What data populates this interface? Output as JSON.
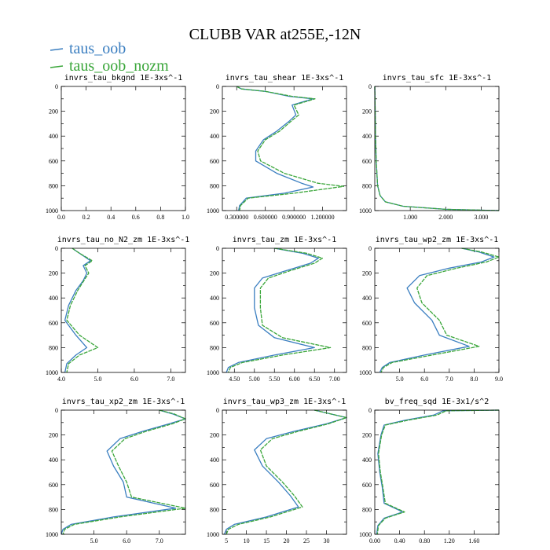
{
  "figure": {
    "title": "CLUBB VAR at255E,-12N",
    "legend": [
      {
        "name": "taus_oob",
        "color": "#3a7ec0"
      },
      {
        "name": "taus_oob_nozm",
        "color": "#3aa63a"
      }
    ]
  },
  "chart_data": [
    {
      "type": "line",
      "title": "invrs_tau_bkgnd  1E-3xs^-1",
      "xlim": [
        0,
        1
      ],
      "ylim": [
        1000,
        0
      ],
      "xticks": [
        "0.0",
        "0.2",
        "0.4",
        "0.6",
        "0.8",
        "1.0"
      ],
      "xtick_values": [
        0,
        0.2,
        0.4,
        0.6,
        0.8,
        1.0
      ],
      "yticks": [
        "0",
        "200",
        "400",
        "600",
        "800",
        "1000"
      ],
      "ytick_values": [
        0,
        200,
        400,
        600,
        800,
        1000
      ],
      "series": []
    },
    {
      "type": "line",
      "title": "invrs_tau_shear  1E-3xs^-1",
      "xlim": [
        0.15,
        1.45
      ],
      "ylim": [
        1000,
        0
      ],
      "xticks": [
        "0.300000",
        "0.600000",
        "0.900000",
        "1.200000"
      ],
      "xtick_values": [
        0.3,
        0.6,
        0.9,
        1.2
      ],
      "yticks": [
        "0",
        "200",
        "400",
        "600",
        "800",
        "1000"
      ],
      "ytick_values": [
        0,
        200,
        400,
        600,
        800,
        1000
      ],
      "series": [
        {
          "x": [
            0.3,
            0.35,
            0.6,
            0.85,
            1.1,
            0.88,
            0.92,
            0.85,
            0.72,
            0.58,
            0.5,
            0.5,
            0.72,
            0.98,
            1.1,
            0.8,
            0.4,
            0.33,
            0.32
          ],
          "y": [
            0,
            20,
            40,
            80,
            100,
            150,
            230,
            280,
            360,
            430,
            520,
            600,
            700,
            780,
            810,
            860,
            900,
            960,
            1000
          ]
        },
        {
          "x": [
            0.3,
            0.35,
            0.6,
            0.88,
            1.12,
            0.9,
            0.95,
            0.87,
            0.75,
            0.6,
            0.52,
            0.55,
            0.8,
            1.15,
            1.42,
            0.9,
            0.42,
            0.34,
            0.33
          ],
          "y": [
            0,
            20,
            40,
            80,
            100,
            150,
            230,
            280,
            360,
            430,
            520,
            600,
            700,
            780,
            805,
            860,
            900,
            960,
            1000
          ]
        }
      ]
    },
    {
      "type": "line",
      "title": "invrs_tau_sfc  1E-3xs^-1",
      "xlim": [
        0,
        3.5
      ],
      "ylim": [
        1000,
        0
      ],
      "xticks": [
        "1.000",
        "2.000",
        "3.000"
      ],
      "xtick_values": [
        1,
        2,
        3
      ],
      "yticks": [
        "0",
        "200",
        "400",
        "600",
        "800",
        "1000"
      ],
      "ytick_values": [
        0,
        200,
        400,
        600,
        800,
        1000
      ],
      "series": [
        {
          "x": [
            0.0,
            0.01,
            0.02,
            0.04,
            0.08,
            0.15,
            0.3,
            0.8,
            2.0,
            3.5
          ],
          "y": [
            0,
            200,
            400,
            600,
            800,
            880,
            930,
            965,
            990,
            1000
          ]
        },
        {
          "x": [
            0.0,
            0.01,
            0.02,
            0.04,
            0.08,
            0.15,
            0.3,
            0.8,
            2.0,
            3.5
          ],
          "y": [
            0,
            200,
            400,
            600,
            800,
            880,
            930,
            965,
            990,
            1000
          ]
        }
      ]
    },
    {
      "type": "line",
      "title": "invrs_tau_no_N2_zm  1E-3xs^-1",
      "xlim": [
        4.0,
        7.4
      ],
      "ylim": [
        1000,
        0
      ],
      "xticks": [
        "4.0",
        "5.0",
        "6.0",
        "7.0"
      ],
      "xtick_values": [
        4,
        5,
        6,
        7
      ],
      "yticks": [
        "0",
        "200",
        "400",
        "600",
        "800",
        "1000"
      ],
      "ytick_values": [
        0,
        200,
        400,
        600,
        800,
        1000
      ],
      "series": [
        {
          "x": [
            4.3,
            4.5,
            4.8,
            4.6,
            4.7,
            4.6,
            4.4,
            4.2,
            4.1,
            4.4,
            4.7,
            4.4,
            4.15,
            4.1
          ],
          "y": [
            0,
            40,
            100,
            140,
            200,
            260,
            340,
            460,
            580,
            700,
            800,
            860,
            930,
            1000
          ]
        },
        {
          "x": [
            4.3,
            4.5,
            4.85,
            4.65,
            4.75,
            4.62,
            4.45,
            4.25,
            4.15,
            4.5,
            5.0,
            4.5,
            4.2,
            4.15
          ],
          "y": [
            0,
            40,
            100,
            140,
            200,
            260,
            340,
            460,
            580,
            700,
            800,
            860,
            930,
            1000
          ]
        }
      ]
    },
    {
      "type": "line",
      "title": "invrs_tau_zm  1E-3xs^-1",
      "xlim": [
        4.2,
        7.3
      ],
      "ylim": [
        1000,
        0
      ],
      "xticks": [
        "4.50",
        "5.00",
        "5.50",
        "6.00",
        "6.50",
        "7.00"
      ],
      "xtick_values": [
        4.5,
        5.0,
        5.5,
        6.0,
        6.5,
        7.0
      ],
      "yticks": [
        "0",
        "200",
        "400",
        "600",
        "800",
        "1000"
      ],
      "ytick_values": [
        0,
        200,
        400,
        600,
        800,
        1000
      ],
      "series": [
        {
          "x": [
            5.5,
            6.2,
            6.6,
            6.4,
            5.8,
            5.2,
            5.0,
            5.0,
            5.1,
            5.5,
            6.5,
            5.5,
            4.6,
            4.35,
            4.3
          ],
          "y": [
            0,
            40,
            80,
            120,
            180,
            240,
            320,
            480,
            620,
            720,
            800,
            860,
            920,
            960,
            1000
          ]
        },
        {
          "x": [
            5.5,
            6.3,
            6.7,
            6.5,
            5.9,
            5.35,
            5.15,
            5.15,
            5.2,
            5.7,
            6.9,
            5.7,
            4.7,
            4.4,
            4.35
          ],
          "y": [
            0,
            40,
            80,
            120,
            180,
            240,
            320,
            480,
            620,
            720,
            800,
            860,
            920,
            960,
            1000
          ]
        }
      ]
    },
    {
      "type": "line",
      "title": "invrs_tau_wp2_zm  1E-3xs^-1",
      "xlim": [
        4.0,
        9.0
      ],
      "ylim": [
        1000,
        0
      ],
      "xticks": [
        "5.0",
        "6.0",
        "7.0",
        "8.0",
        "9.0"
      ],
      "xtick_values": [
        5,
        6,
        7,
        8,
        9
      ],
      "yticks": [
        "0",
        "200",
        "400",
        "600",
        "800",
        "1000"
      ],
      "ytick_values": [
        0,
        200,
        400,
        600,
        800,
        1000
      ],
      "series": [
        {
          "x": [
            7.5,
            8.2,
            8.8,
            8.3,
            7.0,
            5.8,
            5.3,
            5.6,
            6.3,
            6.6,
            7.8,
            6.0,
            4.6,
            4.3,
            4.2
          ],
          "y": [
            0,
            30,
            70,
            110,
            160,
            220,
            320,
            440,
            580,
            700,
            790,
            860,
            920,
            960,
            1000
          ]
        },
        {
          "x": [
            7.5,
            8.3,
            9.0,
            8.5,
            7.3,
            6.1,
            5.7,
            5.9,
            6.6,
            6.9,
            8.2,
            6.3,
            4.7,
            4.35,
            4.25
          ],
          "y": [
            0,
            30,
            70,
            110,
            160,
            220,
            320,
            440,
            580,
            700,
            790,
            860,
            920,
            960,
            1000
          ]
        }
      ]
    },
    {
      "type": "line",
      "title": "invrs_tau_xp2_zm  1E-3xs^-1",
      "xlim": [
        4.0,
        7.8
      ],
      "ylim": [
        1000,
        0
      ],
      "xticks": [
        "5.0",
        "6.0",
        "7.0"
      ],
      "xtick_values": [
        5,
        6,
        7
      ],
      "yticks": [
        "0",
        "200",
        "400",
        "600",
        "800",
        "1000"
      ],
      "ytick_values": [
        0,
        200,
        400,
        600,
        800,
        1000
      ],
      "series": [
        {
          "x": [
            7.0,
            7.4,
            7.8,
            7.3,
            6.5,
            5.8,
            5.4,
            5.6,
            5.9,
            6.0,
            7.5,
            5.6,
            4.3,
            4.05,
            4.0
          ],
          "y": [
            0,
            30,
            70,
            110,
            170,
            230,
            330,
            450,
            580,
            700,
            790,
            860,
            920,
            960,
            1000
          ]
        },
        {
          "x": [
            7.0,
            7.45,
            7.8,
            7.4,
            6.6,
            5.95,
            5.55,
            5.75,
            6.0,
            6.15,
            7.8,
            5.8,
            4.4,
            4.1,
            4.05
          ],
          "y": [
            0,
            30,
            70,
            110,
            170,
            230,
            330,
            450,
            580,
            700,
            790,
            860,
            920,
            960,
            1000
          ]
        }
      ]
    },
    {
      "type": "line",
      "title": "invrs_tau_wp3_zm  1E-3xs^-1",
      "xlim": [
        4.0,
        35.0
      ],
      "ylim": [
        1000,
        0
      ],
      "xticks": [
        "5",
        "10",
        "15",
        "20",
        "25",
        "30"
      ],
      "xtick_values": [
        5,
        10,
        15,
        20,
        25,
        30
      ],
      "yticks": [
        "0",
        "200",
        "400",
        "600",
        "800",
        "1000"
      ],
      "ytick_values": [
        0,
        200,
        400,
        600,
        800,
        1000
      ],
      "series": [
        {
          "x": [
            27,
            31,
            35,
            30,
            22,
            15,
            12,
            14,
            18,
            21,
            23,
            15,
            7,
            5,
            4.5
          ],
          "y": [
            0,
            30,
            60,
            110,
            170,
            230,
            320,
            450,
            580,
            690,
            780,
            860,
            920,
            960,
            1000
          ]
        },
        {
          "x": [
            27,
            31,
            35,
            30.5,
            23,
            16.5,
            13.5,
            15,
            19,
            22,
            24,
            16,
            8,
            5.5,
            5
          ],
          "y": [
            0,
            30,
            60,
            110,
            170,
            230,
            320,
            450,
            580,
            690,
            780,
            860,
            920,
            960,
            1000
          ]
        }
      ]
    },
    {
      "type": "line",
      "title": "bv_freq_sqd  1E-3x1/s^2",
      "xlim": [
        0,
        2.0
      ],
      "ylim": [
        1000,
        0
      ],
      "xticks": [
        "0.00",
        "0.40",
        "0.80",
        "1.20",
        "1.60"
      ],
      "xtick_values": [
        0,
        0.4,
        0.8,
        1.2,
        1.6
      ],
      "yticks": [
        "0",
        "200",
        "400",
        "600",
        "800",
        "1000"
      ],
      "ytick_values": [
        0,
        200,
        400,
        600,
        800,
        1000
      ],
      "series": [
        {
          "x": [
            2.0,
            1.1,
            0.95,
            0.5,
            0.15,
            0.1,
            0.05,
            0.08,
            0.12,
            0.15,
            0.45,
            0.15,
            0.05,
            0.03
          ],
          "y": [
            0,
            5,
            40,
            80,
            120,
            200,
            350,
            500,
            620,
            750,
            820,
            870,
            930,
            1000
          ]
        },
        {
          "x": [
            2.0,
            1.15,
            1.0,
            0.55,
            0.17,
            0.11,
            0.06,
            0.09,
            0.13,
            0.17,
            0.48,
            0.17,
            0.06,
            0.04
          ],
          "y": [
            0,
            5,
            40,
            80,
            120,
            200,
            350,
            500,
            620,
            750,
            820,
            870,
            930,
            1000
          ]
        }
      ]
    }
  ]
}
